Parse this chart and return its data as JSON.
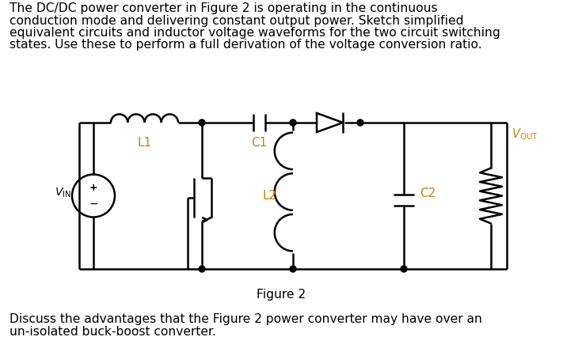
{
  "top_lines": [
    "The DC/DC power converter in Figure 2 is operating in the continuous",
    "conduction mode and delivering constant output power. Sketch simplified",
    "equivalent circuits and inductor voltage waveforms for the two circuit switching",
    "states. Use these to perform a full derivation of the voltage conversion ratio."
  ],
  "bottom_lines": [
    "Discuss the advantages that the Figure 2 power converter may have over an",
    "un-isolated buck-boost converter."
  ],
  "figure_label": "Figure 2",
  "label_L1": "L1",
  "label_L2": "L2",
  "label_C1": "C1",
  "label_C2": "C2",
  "label_color_orange": "#c8820a",
  "bg_color": "#ffffff",
  "line_color": "#000000",
  "line_width": 1.8,
  "font_size_text": 11.2,
  "fig_width": 7.11,
  "fig_height": 4.45
}
